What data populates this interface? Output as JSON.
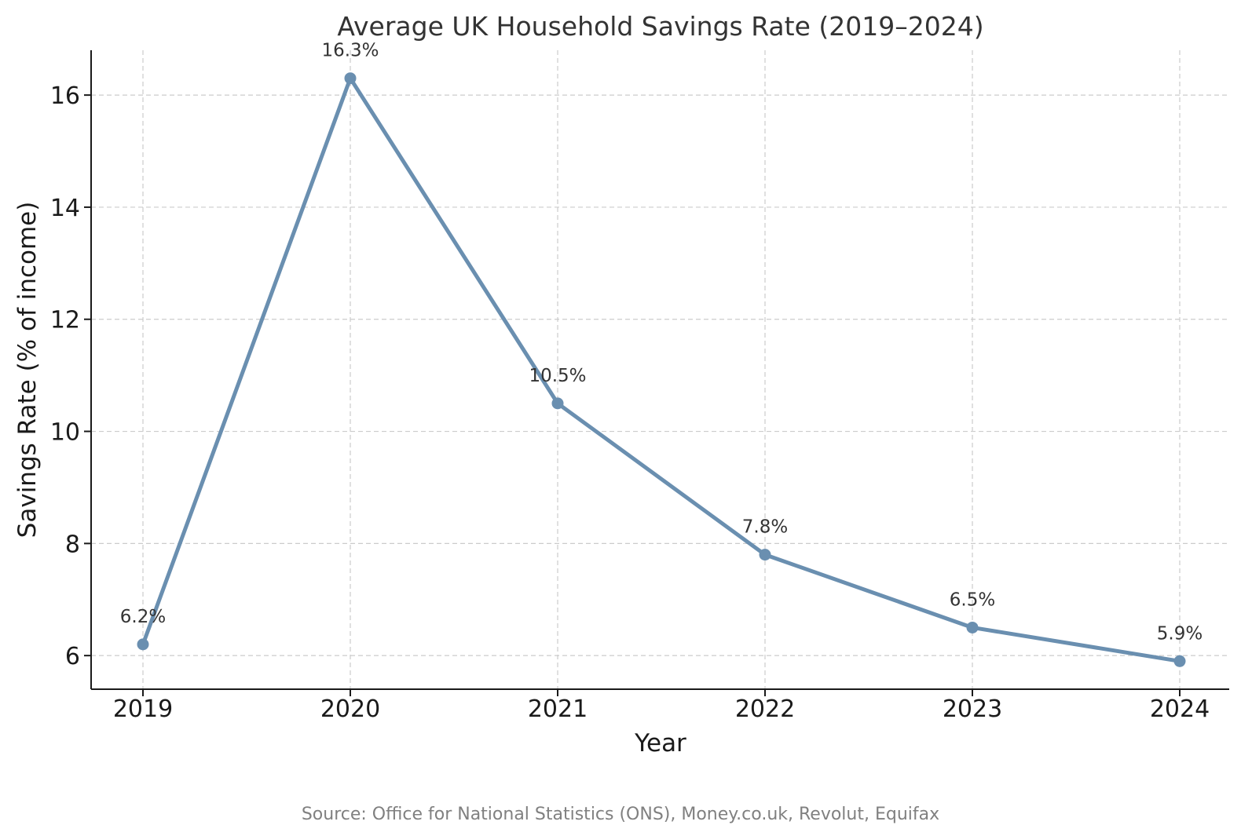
{
  "chart_data": {
    "type": "line",
    "title": "Average UK Household Savings Rate (2019–2024)",
    "xlabel": "Year",
    "ylabel": "Savings Rate (% of income)",
    "x": [
      "2019",
      "2020",
      "2021",
      "2022",
      "2023",
      "2024"
    ],
    "series": [
      {
        "values": [
          6.2,
          16.3,
          10.5,
          7.8,
          6.5,
          5.9
        ],
        "labels": [
          "6.2%",
          "16.3%",
          "10.5%",
          "7.8%",
          "6.5%",
          "5.9%"
        ],
        "color": "#6a8fb0"
      }
    ],
    "yticks": [
      "6",
      "8",
      "10",
      "12",
      "14",
      "16"
    ],
    "ylim": [
      5.4,
      16.8
    ],
    "grid": true,
    "source": "Source: Office for National Statistics (ONS), Money.co.uk, Revolut, Equifax"
  }
}
